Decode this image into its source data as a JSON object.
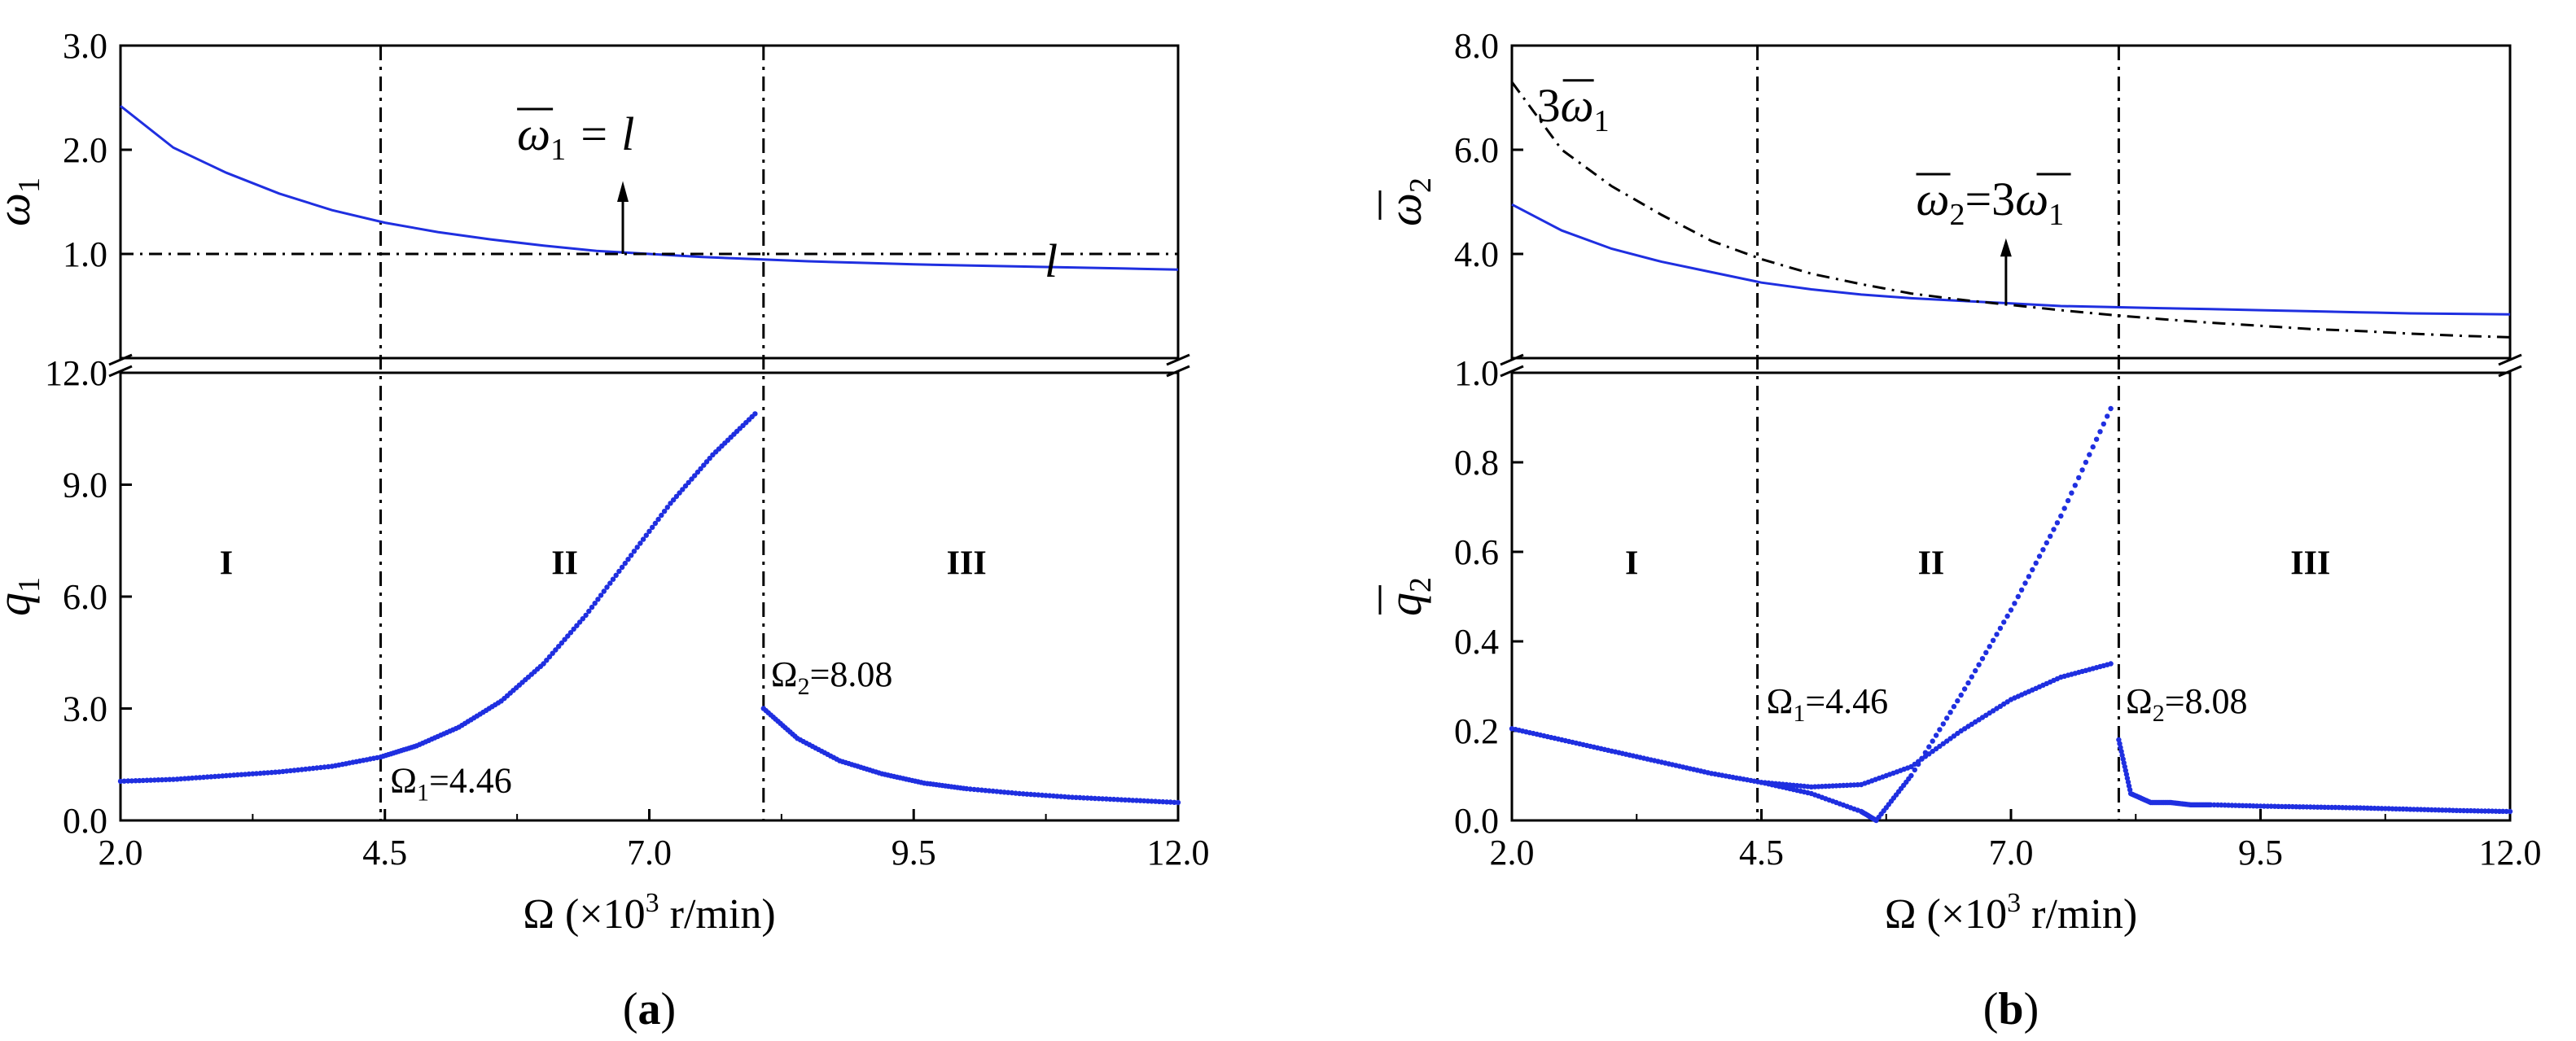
{
  "figure": {
    "panels": [
      {
        "id": "a",
        "label": "a",
        "x_axis": {
          "label_prefix": "Ω (×10",
          "label_sup": "3",
          "label_suffix": " r/min)",
          "range": [
            2.0,
            12.0
          ],
          "ticks": [
            2.0,
            4.5,
            7.0,
            9.5,
            12.0
          ],
          "tick_labels": [
            "2.0",
            "4.5",
            "7.0",
            "9.5",
            "12.0"
          ]
        },
        "top": {
          "ylabel": {
            "symbol": "ω",
            "sub": "1"
          },
          "range": [
            0,
            3.0
          ],
          "ticks": [
            1.0,
            2.0,
            3.0
          ],
          "tick_labels": [
            "1.0",
            "2.0",
            "3.0"
          ]
        },
        "bottom": {
          "ylabel": {
            "symbol": "q",
            "sub": "1"
          },
          "range": [
            0,
            12.0
          ],
          "ticks": [
            0,
            3.0,
            6.0,
            9.0,
            12.0
          ],
          "tick_labels": [
            "0.0",
            "3.0",
            "6.0",
            "9.0",
            "12.0"
          ]
        },
        "vlines": [
          4.46,
          8.08
        ],
        "regions": [
          {
            "label": "I",
            "x": 3.0
          },
          {
            "label": "II",
            "x": 6.2
          },
          {
            "label": "III",
            "x": 10.0
          }
        ],
        "annotations": {
          "omega1_label": "Ω",
          "omega1_sub": "1",
          "omega1_val": "=4.46",
          "omega2_label": "Ω",
          "omega2_sub": "2",
          "omega2_val": "=8.08",
          "line_label": "l",
          "resonance_lhs": "ω",
          "resonance_sub": "1",
          "resonance_rhs": " = l"
        }
      },
      {
        "id": "b",
        "label": "b",
        "x_axis": {
          "label_prefix": "Ω (×10",
          "label_sup": "3",
          "label_suffix": " r/min)",
          "range": [
            2.0,
            12.0
          ],
          "ticks": [
            2.0,
            4.5,
            7.0,
            9.5,
            12.0
          ],
          "tick_labels": [
            "2.0",
            "4.5",
            "7.0",
            "9.5",
            "12.0"
          ]
        },
        "top": {
          "ylabel": {
            "symbol": "ω",
            "sub": "2"
          },
          "range": [
            2.0,
            8.0
          ],
          "ticks": [
            4.0,
            6.0,
            8.0
          ],
          "tick_labels": [
            "4.0",
            "6.0",
            "8.0"
          ]
        },
        "bottom": {
          "ylabel": {
            "symbol": "q",
            "sub": "2"
          },
          "range": [
            0,
            1.0
          ],
          "ticks": [
            0,
            0.2,
            0.4,
            0.6,
            0.8,
            1.0
          ],
          "tick_labels": [
            "0.0",
            "0.2",
            "0.4",
            "0.6",
            "0.8",
            "1.0"
          ]
        },
        "vlines": [
          4.46,
          8.08
        ],
        "regions": [
          {
            "label": "I",
            "x": 3.2
          },
          {
            "label": "II",
            "x": 6.2
          },
          {
            "label": "III",
            "x": 10.0
          }
        ],
        "annotations": {
          "omega1_label": "Ω",
          "omega1_sub": "1",
          "omega1_val": "=4.46",
          "omega2_label": "Ω",
          "omega2_sub": "2",
          "omega2_val": "=8.08",
          "curve_label_prefix": "3",
          "curve_label_sym": "ω",
          "curve_label_sub": "1",
          "resonance_lhs": "ω",
          "resonance_lhs_sub": "2",
          "resonance_eq": "=3",
          "resonance_rhs": "ω",
          "resonance_rhs_sub": "1"
        }
      }
    ]
  },
  "chart_data": [
    {
      "type": "line",
      "panel": "a-top",
      "x": [
        2.0,
        2.5,
        3.0,
        3.5,
        4.0,
        4.5,
        5.0,
        5.5,
        6.0,
        6.5,
        7.0,
        7.5,
        8.0,
        8.5,
        9.0,
        9.5,
        10.0,
        10.5,
        11.0,
        11.5,
        12.0
      ],
      "series": [
        {
          "values": [
            2.42,
            2.02,
            1.78,
            1.58,
            1.42,
            1.3,
            1.21,
            1.14,
            1.08,
            1.03,
            1.0,
            0.97,
            0.95,
            0.93,
            0.915,
            0.9,
            0.89,
            0.88,
            0.87,
            0.86,
            0.85
          ],
          "color": "#1f2fe0",
          "style": "solid"
        },
        {
          "values": [
            1.0,
            1.0,
            1.0,
            1.0,
            1.0,
            1.0,
            1.0,
            1.0,
            1.0,
            1.0,
            1.0,
            1.0,
            1.0,
            1.0,
            1.0,
            1.0,
            1.0,
            1.0,
            1.0,
            1.0,
            1.0
          ],
          "color": "#000000",
          "style": "dashdot"
        }
      ],
      "ylim": [
        0,
        3.0
      ]
    },
    {
      "type": "scatter",
      "panel": "a-bottom",
      "series": [
        {
          "x": [
            2.0,
            2.5,
            3.0,
            3.5,
            4.0,
            4.46,
            4.8,
            5.2,
            5.6,
            6.0,
            6.4,
            6.8,
            7.2,
            7.6,
            8.0
          ],
          "values": [
            1.05,
            1.1,
            1.2,
            1.3,
            1.45,
            1.7,
            2.0,
            2.5,
            3.2,
            4.2,
            5.5,
            7.0,
            8.5,
            9.8,
            10.9
          ],
          "color": "#1f2fe0"
        },
        {
          "x": [
            8.08,
            8.4,
            8.8,
            9.2,
            9.6,
            10.0,
            10.5,
            11.0,
            11.5,
            12.0
          ],
          "values": [
            3.0,
            2.2,
            1.6,
            1.25,
            1.0,
            0.85,
            0.72,
            0.62,
            0.55,
            0.48
          ],
          "color": "#1f2fe0"
        }
      ],
      "ylim": [
        0,
        12.0
      ]
    },
    {
      "type": "line",
      "panel": "b-top",
      "x": [
        2.0,
        2.5,
        3.0,
        3.5,
        4.0,
        4.5,
        5.0,
        5.5,
        6.0,
        6.5,
        7.0,
        7.5,
        8.0,
        8.5,
        9.0,
        9.5,
        10.0,
        10.5,
        11.0,
        11.5,
        12.0
      ],
      "series": [
        {
          "values": [
            4.95,
            4.45,
            4.1,
            3.85,
            3.65,
            3.45,
            3.32,
            3.22,
            3.15,
            3.1,
            3.05,
            3.0,
            2.98,
            2.96,
            2.94,
            2.92,
            2.9,
            2.88,
            2.86,
            2.85,
            2.84
          ],
          "color": "#1f2fe0",
          "style": "solid"
        },
        {
          "values": [
            7.3,
            6.0,
            5.3,
            4.75,
            4.25,
            3.9,
            3.62,
            3.42,
            3.24,
            3.12,
            3.02,
            2.92,
            2.83,
            2.75,
            2.68,
            2.62,
            2.56,
            2.52,
            2.47,
            2.43,
            2.4
          ],
          "color": "#000000",
          "style": "dashdot"
        }
      ],
      "ylim": [
        2.0,
        8.0
      ]
    },
    {
      "type": "scatter",
      "panel": "b-bottom",
      "series": [
        {
          "x": [
            2.0,
            2.5,
            3.0,
            3.5,
            4.0,
            4.5,
            5.0,
            5.5,
            6.0,
            6.5,
            7.0,
            7.5,
            8.0
          ],
          "values": [
            0.205,
            0.18,
            0.155,
            0.13,
            0.105,
            0.085,
            0.075,
            0.08,
            0.12,
            0.2,
            0.27,
            0.32,
            0.35
          ],
          "color": "#1f2fe0"
        },
        {
          "x": [
            4.5,
            5.0,
            5.5,
            5.65,
            6.0,
            6.5,
            7.0,
            7.5,
            8.0
          ],
          "values": [
            0.085,
            0.06,
            0.02,
            0.0,
            0.1,
            0.28,
            0.47,
            0.68,
            0.92
          ],
          "color": "#1f2fe0"
        },
        {
          "x": [
            8.08,
            8.2,
            8.4,
            8.6,
            8.8,
            9.0,
            9.5,
            10.0,
            10.5,
            11.0,
            11.5,
            12.0
          ],
          "values": [
            0.18,
            0.06,
            0.04,
            0.04,
            0.035,
            0.035,
            0.032,
            0.03,
            0.028,
            0.025,
            0.022,
            0.02
          ],
          "color": "#1f2fe0"
        }
      ],
      "ylim": [
        0,
        1.0
      ]
    }
  ]
}
